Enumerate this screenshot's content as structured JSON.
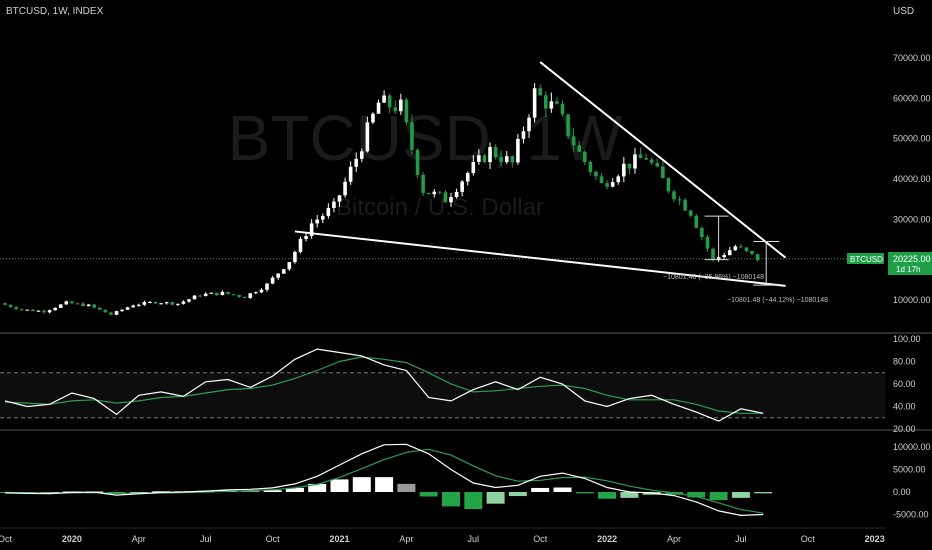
{
  "header": {
    "symbol_label": "BTCUSD, 1W, INDEX",
    "currency": "USD",
    "watermark_symbol": "BTCUSD, 1W",
    "watermark_name": "Bitcoin / U.S. Dollar"
  },
  "price_badge": {
    "symbol": "BTCUSD",
    "price": "20225.00",
    "countdown": "1d 17h"
  },
  "measurements": [
    {
      "text": "−10801.48 (−35.86%) −1080148"
    },
    {
      "text": "−10801.48 (−44.12%) −1080148"
    }
  ],
  "x_axis": {
    "labels": [
      "Oct",
      "2020",
      "Apr",
      "Jul",
      "Oct",
      "2021",
      "Apr",
      "Jul",
      "Oct",
      "2022",
      "Apr",
      "Jul",
      "Oct",
      "2023"
    ]
  },
  "colors": {
    "background": "#000000",
    "up": "#ffffff",
    "down": "#1e9e47",
    "trendline": "#ffffff",
    "rsi_line": "#ffffff",
    "rsi_ma": "#2e9d4f",
    "macd_line": "#ffffff",
    "signal_line": "#2e9d4f",
    "hist_pos": "#ffffff",
    "hist_pos_fading": "#9a9a9a",
    "hist_neg": "#22a447",
    "hist_neg_fading": "#8fd4a0"
  },
  "chart_data": [
    {
      "type": "candlestick",
      "title": "BTCUSD, 1W, INDEX",
      "x": [
        "2019-10",
        "2019-11",
        "2019-12",
        "2020-01",
        "2020-02",
        "2020-03",
        "2020-04",
        "2020-05",
        "2020-06",
        "2020-07",
        "2020-08",
        "2020-09",
        "2020-10",
        "2020-11",
        "2020-12",
        "2021-01",
        "2021-02",
        "2021-03",
        "2021-04",
        "2021-05",
        "2021-06",
        "2021-07",
        "2021-08",
        "2021-09",
        "2021-10",
        "2021-11",
        "2021-12",
        "2022-01",
        "2022-02",
        "2022-03",
        "2022-04",
        "2022-05",
        "2022-06",
        "2022-07",
        "2022-08"
      ],
      "close": [
        9200,
        7600,
        7200,
        9300,
        8600,
        6400,
        8800,
        9500,
        9100,
        11300,
        11700,
        10800,
        13800,
        19700,
        29000,
        33100,
        45200,
        58800,
        57800,
        37300,
        35000,
        41500,
        47100,
        43800,
        61300,
        57000,
        46300,
        38500,
        43200,
        45500,
        37700,
        31800,
        19800,
        23300,
        20225
      ],
      "ylim": [
        7000,
        75000
      ],
      "yticks": [
        10000,
        20000,
        30000,
        40000,
        50000,
        60000,
        70000
      ],
      "ylabel": "USD",
      "last_price": 20225.0,
      "trendlines": [
        {
          "name": "upper",
          "from": [
            "2021-10",
            69000
          ],
          "to": [
            "2022-09",
            20500
          ]
        },
        {
          "name": "lower",
          "from": [
            "2020-11",
            27000
          ],
          "to": [
            "2022-09",
            13500
          ]
        }
      ]
    },
    {
      "type": "line",
      "name": "RSI",
      "ylim": [
        20,
        100
      ],
      "yticks": [
        20,
        40,
        60,
        80,
        100
      ],
      "levels": [
        70,
        30
      ],
      "series": [
        {
          "values": [
            45,
            40,
            42,
            52,
            47,
            33,
            50,
            53,
            49,
            62,
            64,
            57,
            67,
            82,
            91,
            88,
            85,
            77,
            72,
            48,
            45,
            55,
            62,
            55,
            66,
            60,
            45,
            40,
            47,
            50,
            42,
            35,
            27,
            38,
            34
          ]
        },
        {
          "values": [
            44,
            43,
            42,
            45,
            46,
            43,
            45,
            48,
            49,
            52,
            55,
            56,
            59,
            65,
            72,
            80,
            84,
            82,
            79,
            70,
            60,
            53,
            54,
            56,
            58,
            59,
            56,
            50,
            46,
            46,
            46,
            42,
            36,
            34,
            34
          ]
        }
      ]
    },
    {
      "type": "line",
      "name": "MACD",
      "ylim": [
        -6500,
        12500
      ],
      "yticks": [
        -5000,
        0,
        5000,
        10000
      ],
      "series": [
        {
          "values": [
            -200,
            -300,
            -350,
            -100,
            -50,
            -700,
            -400,
            -100,
            0,
            200,
            500,
            600,
            900,
            1800,
            3500,
            6000,
            8500,
            10500,
            10600,
            8500,
            5000,
            2000,
            1000,
            1500,
            3500,
            4200,
            3000,
            1000,
            0,
            -200,
            -800,
            -2200,
            -4200,
            -5200,
            -5000
          ]
        },
        {
          "values": [
            -100,
            -150,
            -250,
            -200,
            -150,
            -300,
            -350,
            -250,
            -150,
            -50,
            150,
            300,
            500,
            900,
            1700,
            3200,
            5200,
            7200,
            8800,
            9500,
            8200,
            5800,
            3600,
            2400,
            2600,
            3200,
            3300,
            2500,
            1300,
            400,
            -200,
            -1000,
            -2400,
            -3900,
            -4700
          ]
        }
      ]
    }
  ]
}
